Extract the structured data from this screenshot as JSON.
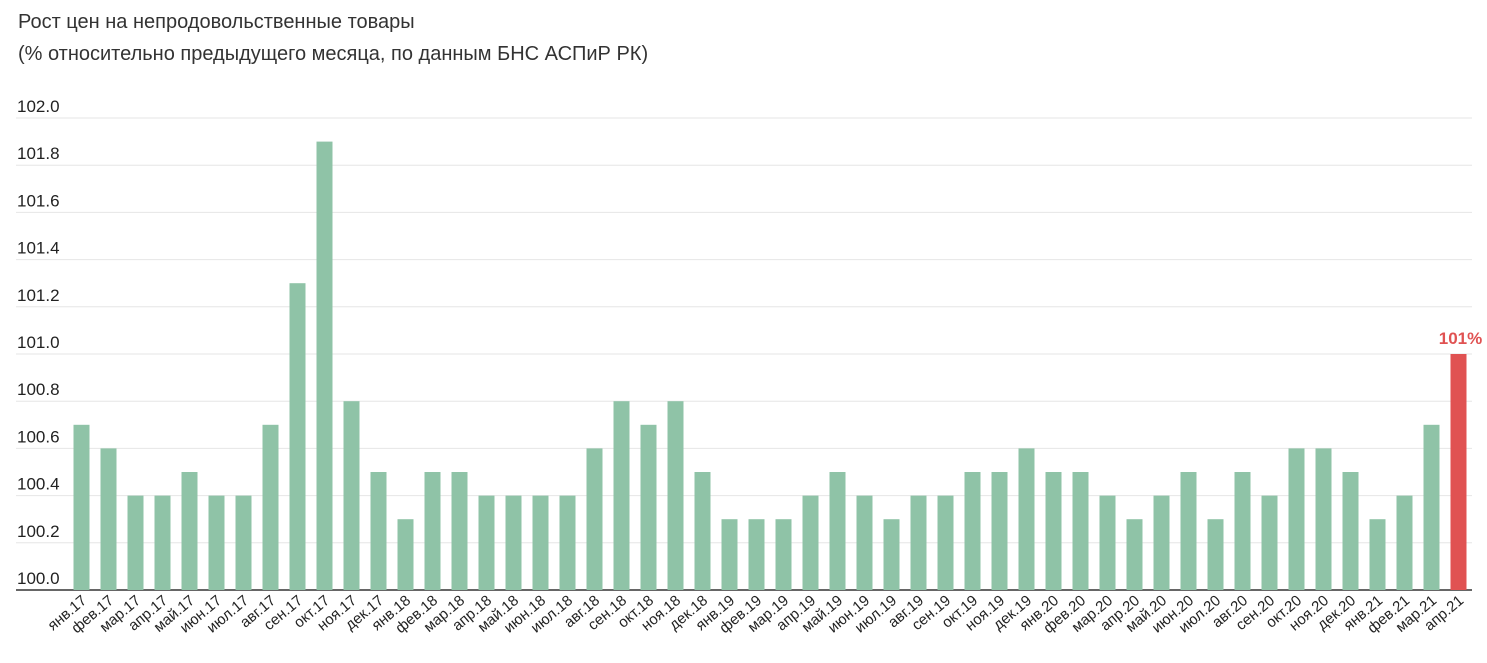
{
  "chart_data": {
    "type": "bar",
    "title": "Рост цен на непродовольственные товары",
    "subtitle": "(% относительно предыдущего месяца, по данным БНС АСПиР РК)",
    "xlabel": "",
    "ylabel": "",
    "ylim": [
      100.0,
      102.0
    ],
    "yticks": [
      "100.0",
      "100.2",
      "100.4",
      "100.6",
      "100.8",
      "101.0",
      "101.2",
      "101.4",
      "101.6",
      "101.8",
      "102.0"
    ],
    "grid": true,
    "categories": [
      "янв.17",
      "фев.17",
      "мар.17",
      "апр.17",
      "май.17",
      "июн.17",
      "июл.17",
      "авг.17",
      "сен.17",
      "окт.17",
      "ноя.17",
      "дек.17",
      "янв.18",
      "фев.18",
      "мар.18",
      "апр.18",
      "май.18",
      "июн.18",
      "июл.18",
      "авг.18",
      "сен.18",
      "окт.18",
      "ноя.18",
      "дек.18",
      "янв.19",
      "фев.19",
      "мар.19",
      "апр.19",
      "май.19",
      "июн.19",
      "июл.19",
      "авг.19",
      "сен.19",
      "окт.19",
      "ноя.19",
      "дек.19",
      "янв.20",
      "фев.20",
      "мар.20",
      "апр.20",
      "май.20",
      "июн.20",
      "июл.20",
      "авг.20",
      "сен.20",
      "окт.20",
      "ноя.20",
      "дек.20",
      "янв.21",
      "фев.21",
      "мар.21",
      "апр.21"
    ],
    "values": [
      100.7,
      100.6,
      100.4,
      100.4,
      100.5,
      100.4,
      100.4,
      100.7,
      101.3,
      101.9,
      100.8,
      100.5,
      100.3,
      100.5,
      100.5,
      100.4,
      100.4,
      100.4,
      100.4,
      100.6,
      100.8,
      100.7,
      100.8,
      100.5,
      100.3,
      100.3,
      100.3,
      100.4,
      100.5,
      100.4,
      100.3,
      100.4,
      100.4,
      100.5,
      100.5,
      100.6,
      100.5,
      100.5,
      100.4,
      100.3,
      100.4,
      100.5,
      100.3,
      100.5,
      100.4,
      100.6,
      100.6,
      100.5,
      100.3,
      100.4,
      100.7,
      101.0
    ],
    "bar_color": "#8fc3a7",
    "highlight_color": "#e05252",
    "highlight_index": 51,
    "annotations": [
      {
        "category": "апр.21",
        "text": "101%"
      }
    ]
  }
}
